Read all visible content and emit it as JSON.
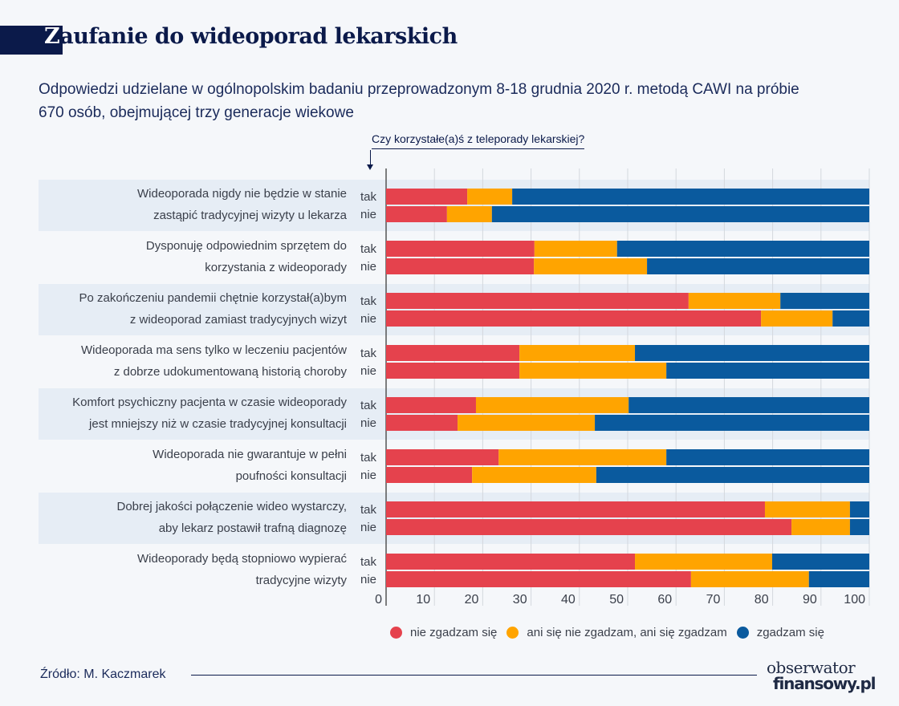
{
  "title": "Zaufanie do wideoporad lekarskich",
  "title_first": "Z",
  "title_rest": "aufanie do wideoporad lekarskich",
  "subtitle_line1": "Odpowiedzi udzielane w ogólnopolskim badaniu przeprowadzonym 8-18 grudnia 2020 r. metodą CAWI na próbie",
  "subtitle_line2": "670 osób, obejmującej trzy generacje wiekowe",
  "source": "Źródło: M. Kaczmarek",
  "logo_line1": "obserwator",
  "logo_line2": "finansowy.pl",
  "chart_data": {
    "type": "bar",
    "stacked": true,
    "orientation": "horizontal",
    "group_label": "Czy korzystałe(a)ś z teleporady lekarskiej?",
    "xlim": [
      0,
      100
    ],
    "xticks": [
      0,
      10,
      20,
      30,
      40,
      50,
      60,
      70,
      80,
      90,
      100
    ],
    "grid": true,
    "legend_position": "bottom",
    "series": [
      {
        "name": "nie zgadzam się",
        "color": "#e5424d"
      },
      {
        "name": "ani się nie zgadzam, ani się zgadzam",
        "color": "#ffa400"
      },
      {
        "name": "zgadzam się",
        "color": "#0a5a9e"
      }
    ],
    "categories": [
      {
        "label": [
          "Wideoporada nigdy nie będzie w stanie",
          "zastąpić tradycyjnej wizyty u lekarza"
        ],
        "tak": [
          16.8,
          9.3,
          73.9
        ],
        "nie": [
          12.6,
          9.3,
          78.1
        ]
      },
      {
        "label": [
          "Dysponuję odpowiednim sprzętem do",
          "korzystania z wideoporady"
        ],
        "tak": [
          30.7,
          17.1,
          52.2
        ],
        "nie": [
          30.6,
          23.4,
          46.0
        ]
      },
      {
        "label": [
          "Po zakończeniu pandemii chętnie korzystał(a)bym",
          "z wideoporad zamiast tradycyjnych wizyt"
        ],
        "tak": [
          62.6,
          19.0,
          18.4
        ],
        "nie": [
          77.6,
          14.8,
          7.6
        ]
      },
      {
        "label": [
          "Wideoporada ma sens tylko w leczeniu pacjentów",
          "z dobrze udokumentowaną historią choroby"
        ],
        "tak": [
          27.6,
          23.9,
          48.5
        ],
        "nie": [
          27.6,
          30.4,
          42.0
        ]
      },
      {
        "label": [
          "Komfort psychiczny pacjenta w czasie wideoporady",
          "jest mniejszy niż w czasie tradycyjnej konsultacji"
        ],
        "tak": [
          18.6,
          31.6,
          49.8
        ],
        "nie": [
          14.8,
          28.4,
          56.8
        ]
      },
      {
        "label": [
          "Wideoporada nie gwarantuje w pełni",
          "poufności konsultacji"
        ],
        "tak": [
          23.3,
          34.7,
          42.0
        ],
        "nie": [
          17.8,
          25.7,
          56.5
        ]
      },
      {
        "label": [
          "Dobrej jakości połączenie wideo wystarczy,",
          "aby lekarz postawił trafną diagnozę"
        ],
        "tak": [
          78.4,
          17.6,
          4.0
        ],
        "nie": [
          83.9,
          12.1,
          4.0
        ]
      },
      {
        "label": [
          "Wideoporady będą stopniowo wypierać",
          "tradycyjne wizyty"
        ],
        "tak": [
          51.5,
          28.4,
          20.1
        ],
        "nie": [
          63.1,
          24.4,
          12.5
        ]
      }
    ],
    "row_labels": {
      "tak": "tak",
      "nie": "nie"
    }
  }
}
